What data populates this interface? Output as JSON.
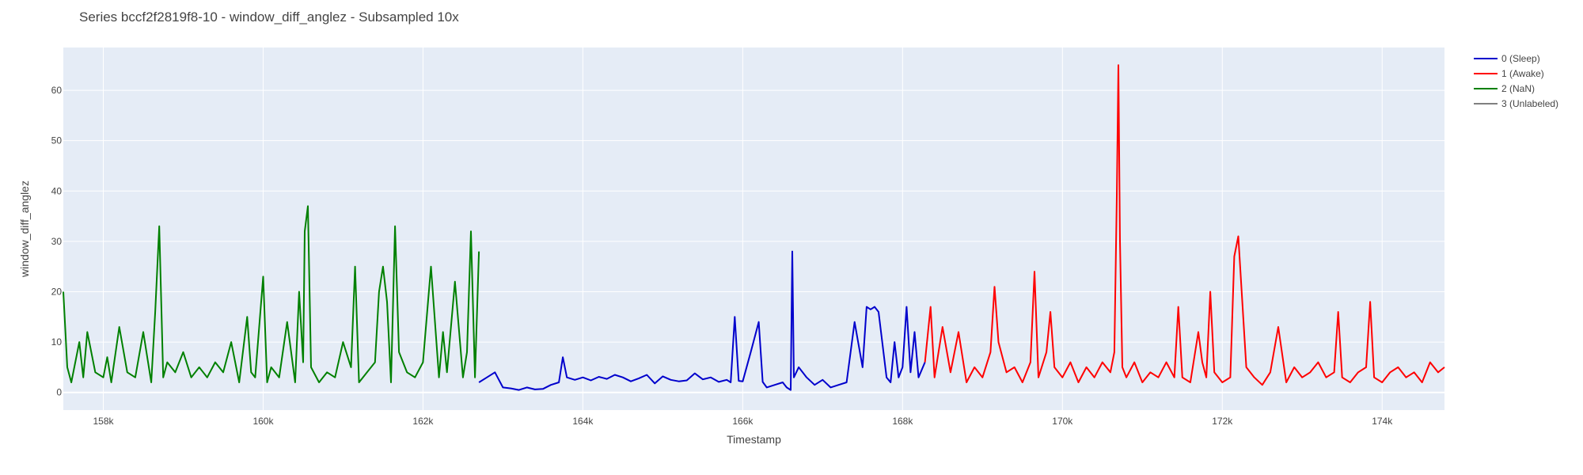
{
  "chart_data": {
    "type": "line",
    "title": "Series bccf2f2819f8-10 - window_diff_anglez - Subsampled 10x",
    "xlabel": "Timestamp",
    "ylabel": "window_diff_anglez",
    "xlim": [
      157500,
      174780
    ],
    "ylim": [
      -3.5,
      68.5
    ],
    "x_ticks": [
      158000,
      160000,
      162000,
      164000,
      166000,
      168000,
      170000,
      172000,
      174000
    ],
    "x_tick_labels": [
      "158k",
      "160k",
      "162k",
      "164k",
      "166k",
      "168k",
      "170k",
      "172k",
      "174k"
    ],
    "y_ticks": [
      0,
      10,
      20,
      30,
      40,
      50,
      60
    ],
    "y_tick_labels": [
      "0",
      "10",
      "20",
      "30",
      "40",
      "50",
      "60"
    ],
    "grid": true,
    "legend_position": "top-right",
    "colors": {
      "plot_bg": "#e5ecf6",
      "grid": "#ffffff"
    },
    "series": [
      {
        "name": "0 (Sleep)",
        "color": "#0000cc",
        "x": [
          162700,
          162800,
          162900,
          163000,
          163100,
          163200,
          163300,
          163400,
          163500,
          163600,
          163700,
          163750,
          163800,
          163900,
          164000,
          164100,
          164200,
          164300,
          164400,
          164500,
          164600,
          164700,
          164800,
          164900,
          165000,
          165100,
          165200,
          165300,
          165400,
          165500,
          165600,
          165700,
          165800,
          165850,
          165900,
          165950,
          166000,
          166100,
          166200,
          166250,
          166300,
          166400,
          166500,
          166550,
          166600,
          166620,
          166640,
          166700,
          166800,
          166900,
          167000,
          167100,
          167200,
          167300,
          167400,
          167500,
          167550,
          167600,
          167650,
          167700,
          167800,
          167850,
          167900,
          167950,
          168000,
          168050,
          168100,
          168150,
          168200,
          168280
        ],
        "y": [
          2,
          3,
          4,
          1,
          0.8,
          0.5,
          1,
          0.6,
          0.7,
          1.5,
          2,
          7,
          3,
          2.5,
          3,
          2.4,
          3.1,
          2.7,
          3.5,
          3,
          2.2,
          2.8,
          3.5,
          1.8,
          3.2,
          2.5,
          2.2,
          2.4,
          3.8,
          2.6,
          3,
          2.1,
          2.5,
          2,
          15,
          2.3,
          2.2,
          8,
          14,
          2.1,
          1,
          1.5,
          2,
          1,
          0.5,
          28,
          3,
          5,
          3,
          1.5,
          2.5,
          1,
          1.5,
          2,
          14,
          5,
          17,
          16.5,
          17,
          16,
          3,
          2,
          10,
          3,
          5,
          17,
          4,
          12,
          3,
          6
        ]
      },
      {
        "name": "1 (Awake)",
        "color": "#ff0000",
        "x": [
          168280,
          168350,
          168400,
          168500,
          168600,
          168700,
          168800,
          168900,
          169000,
          169100,
          169150,
          169200,
          169300,
          169400,
          169500,
          169600,
          169650,
          169700,
          169800,
          169850,
          169900,
          170000,
          170100,
          170200,
          170300,
          170400,
          170500,
          170600,
          170650,
          170680,
          170700,
          170720,
          170750,
          170800,
          170900,
          171000,
          171100,
          171200,
          171300,
          171400,
          171450,
          171500,
          171600,
          171700,
          171750,
          171800,
          171850,
          171900,
          172000,
          172100,
          172150,
          172200,
          172300,
          172400,
          172500,
          172600,
          172700,
          172800,
          172900,
          173000,
          173100,
          173200,
          173300,
          173400,
          173450,
          173500,
          173600,
          173700,
          173800,
          173850,
          173900,
          174000,
          174100,
          174200,
          174300,
          174400,
          174500,
          174600,
          174700,
          174780
        ],
        "y": [
          6,
          17,
          3,
          13,
          4,
          12,
          2,
          5,
          3,
          8,
          21,
          10,
          4,
          5,
          2,
          6,
          24,
          3,
          8,
          16,
          5,
          3,
          6,
          2,
          5,
          3,
          6,
          4,
          8,
          39,
          65,
          30,
          5,
          3,
          6,
          2,
          4,
          3,
          6,
          3,
          17,
          3,
          2,
          12,
          6,
          3,
          20,
          4,
          2,
          3,
          27,
          31,
          5,
          3,
          1.5,
          4,
          13,
          2,
          5,
          3,
          4,
          6,
          3,
          4,
          16,
          3,
          2,
          4,
          5,
          18,
          3,
          2,
          4,
          5,
          3,
          4,
          2,
          6,
          4,
          5
        ]
      },
      {
        "name": "2 (NaN)",
        "color": "#008000",
        "x": [
          157500,
          157550,
          157600,
          157700,
          157750,
          157800,
          157900,
          158000,
          158050,
          158100,
          158200,
          158300,
          158400,
          158500,
          158600,
          158650,
          158700,
          158750,
          158800,
          158900,
          159000,
          159100,
          159200,
          159300,
          159400,
          159500,
          159600,
          159700,
          159800,
          159850,
          159900,
          160000,
          160050,
          160100,
          160200,
          160300,
          160400,
          160450,
          160500,
          160520,
          160560,
          160600,
          160700,
          160800,
          160900,
          161000,
          161100,
          161150,
          161200,
          161300,
          161400,
          161450,
          161500,
          161550,
          161600,
          161650,
          161700,
          161800,
          161900,
          162000,
          162100,
          162200,
          162250,
          162300,
          162400,
          162500,
          162550,
          162600,
          162650,
          162700
        ],
        "y": [
          20,
          5,
          2,
          10,
          3,
          12,
          4,
          3,
          7,
          2,
          13,
          4,
          3,
          12,
          2,
          16,
          33,
          3,
          6,
          4,
          8,
          3,
          5,
          3,
          6,
          4,
          10,
          2,
          15,
          4,
          3,
          23,
          2,
          5,
          3,
          14,
          2,
          20,
          6,
          32,
          37,
          5,
          2,
          4,
          3,
          10,
          5,
          25,
          2,
          4,
          6,
          20,
          25,
          18,
          2,
          33,
          8,
          4,
          3,
          6,
          25,
          3,
          12,
          4,
          22,
          3,
          8,
          32,
          3,
          28
        ]
      },
      {
        "name": "3 (Unlabeled)",
        "color": "#808080",
        "x": [],
        "y": []
      }
    ]
  }
}
